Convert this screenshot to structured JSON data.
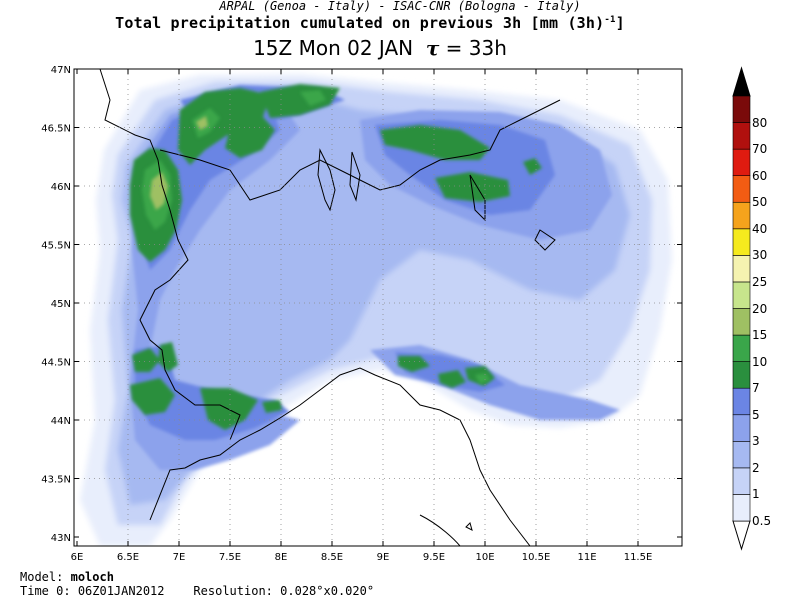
{
  "header": {
    "organizations": "ARPAL (Genoa - Italy)  -  ISAC-CNR (Bologna - Italy)",
    "title_main": "Total precipitation cumulated on previous 3h [mm (3h)",
    "title_exp": "-1",
    "title_close": "]",
    "valid_time": "15Z Mon 02 JAN",
    "tau_symbol": "τ",
    "lead_time": "= 33h"
  },
  "map": {
    "lat_labels": [
      "47N",
      "46.5N",
      "46N",
      "45.5N",
      "45N",
      "44.5N",
      "44N",
      "43.5N",
      "43N"
    ],
    "lon_labels": [
      "6E",
      "6.5E",
      "7E",
      "7.5E",
      "8E",
      "8.5E",
      "9E",
      "9.5E",
      "10E",
      "10.5E",
      "11E",
      "11.5E"
    ],
    "background_color": "#ffffff",
    "coastline_color": "#000000"
  },
  "colorbar": {
    "levels": [
      "0.5",
      "1",
      "2",
      "3",
      "5",
      "7",
      "10",
      "15",
      "20",
      "25",
      "30",
      "40",
      "50",
      "60",
      "70",
      "80"
    ],
    "colors": [
      "#e8eefc",
      "#c6d3f7",
      "#a6b9f1",
      "#8ca2ec",
      "#6b85e4",
      "#2a8f3e",
      "#3aa64a",
      "#9fc063",
      "#c7e58c",
      "#f5f3b0",
      "#f5ea1e",
      "#f5a31c",
      "#f25c13",
      "#df1b10",
      "#b0100e",
      "#7a0a0a"
    ],
    "top_color": "#000000",
    "bottom_color": "#ffffff"
  },
  "footer": {
    "model_label": "Model:",
    "model_name": "moloch",
    "time0_label": "Time 0:",
    "time0_value": "06Z01JAN2012",
    "resolution_label": "Resolution:",
    "resolution_value": "0.028°x0.020°"
  }
}
